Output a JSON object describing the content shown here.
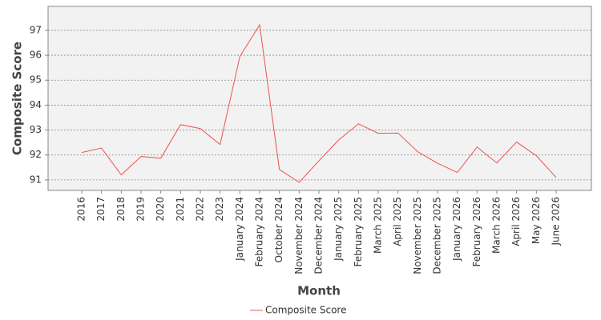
{
  "chart_data": {
    "type": "line",
    "x_label": "Month",
    "y_label": "Composite Score",
    "categories": [
      "2016",
      "2017",
      "2018",
      "2019",
      "2020",
      "2021",
      "2022",
      "2023",
      "January 2024",
      "February 2024",
      "October 2024",
      "November 2024",
      "December 2024",
      "January 2025",
      "February 2025",
      "March 2025",
      "April 2025",
      "November 2025",
      "December 2025",
      "January 2026",
      "February 2026",
      "March 2026",
      "April 2026",
      "May 2026",
      "June 2026"
    ],
    "series": [
      {
        "name": "Composite Score",
        "color": "#f05050",
        "values": [
          92.1,
          92.28,
          91.2,
          91.94,
          91.87,
          93.22,
          93.06,
          92.42,
          95.95,
          97.22,
          91.42,
          90.9,
          91.77,
          92.6,
          93.25,
          92.87,
          92.88,
          92.13,
          91.67,
          91.3,
          92.32,
          91.68,
          92.52,
          91.97,
          91.1
        ]
      }
    ],
    "ylim": [
      90.58,
      97.96
    ],
    "yticks": [
      91,
      92,
      93,
      94,
      95,
      96,
      97
    ],
    "grid": true,
    "legend": "bottom"
  }
}
